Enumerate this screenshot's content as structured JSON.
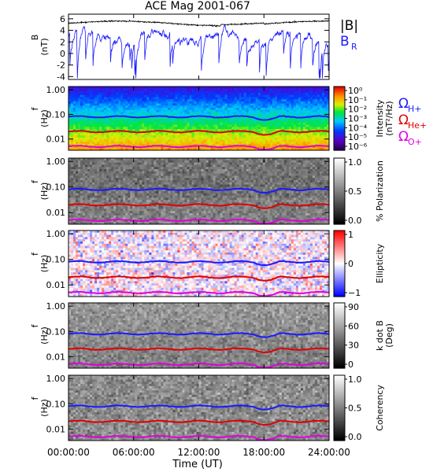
{
  "chart_data": [
    {
      "type": "line",
      "title": "ACE Mag 2001-067",
      "ylabel": "B",
      "yunit": "(nT)",
      "yticks": [
        "6",
        "4",
        "2",
        "0",
        "-2",
        "-4"
      ],
      "ylim": [
        -4.5,
        6.8
      ],
      "legend": [
        {
          "label": "|B|",
          "color": "#000000"
        },
        {
          "label": "B",
          "subscript": "R",
          "color": "#1a1aff"
        }
      ],
      "series": [
        {
          "name": "|B|",
          "color": "#000000",
          "typical": 5.0,
          "range": [
            4.0,
            6.0
          ]
        },
        {
          "name": "B_R",
          "color": "#1a1aff",
          "typical": 3.0,
          "range": [
            -4.4,
            5.5
          ]
        }
      ]
    },
    {
      "type": "heatmap",
      "ylabel": "f",
      "yunit": "(Hz)",
      "yticks": [
        "1.00",
        "0.10",
        "0.01"
      ],
      "colorbar": {
        "title": "Intensity",
        "unit": "(nT²/Hz)",
        "ticks": [
          "10⁰",
          "10⁻¹",
          "10⁻²",
          "10⁻³",
          "10⁻⁴",
          "10⁻⁵",
          "10⁻⁶"
        ],
        "scale": "rainbow"
      },
      "cyclotron_labels": [
        {
          "label": "Ω",
          "subscript": "H+",
          "color": "#1a1aff"
        },
        {
          "label": "Ω",
          "subscript": "He+",
          "color": "#e00000"
        },
        {
          "label": "Ω",
          "subscript": "O+",
          "color": "#e000e0"
        }
      ]
    },
    {
      "type": "heatmap",
      "ylabel": "f",
      "yunit": "(Hz)",
      "yticks": [
        "1.00",
        "0.10",
        "0.01"
      ],
      "colorbar": {
        "title": "% Polarization",
        "ticks": [
          "1.0",
          "0.5",
          "0.0"
        ],
        "scale": "gray"
      }
    },
    {
      "type": "heatmap",
      "ylabel": "f",
      "yunit": "(Hz)",
      "yticks": [
        "1.00",
        "0.10",
        "0.01"
      ],
      "colorbar": {
        "title": "Ellipticity",
        "ticks": [
          "1",
          "0",
          "−1"
        ],
        "scale": "bwr"
      }
    },
    {
      "type": "heatmap",
      "ylabel": "f",
      "yunit": "(Hz)",
      "yticks": [
        "1.00",
        "0.10",
        "0.01"
      ],
      "colorbar": {
        "title": "k dot B",
        "unit": "(Deg)",
        "ticks": [
          "90",
          "60",
          "30",
          "0"
        ],
        "scale": "gray"
      }
    },
    {
      "type": "heatmap",
      "ylabel": "f",
      "yunit": "(Hz)",
      "yticks": [
        "1.00",
        "0.10",
        "0.01"
      ],
      "colorbar": {
        "title": "Coherency",
        "ticks": [
          "1.0",
          "0.5",
          "0.0"
        ],
        "scale": "gray"
      }
    }
  ],
  "overlays": {
    "cyclotron_lines": [
      {
        "name": "Ω_H+",
        "color": "#1a1aff",
        "freq_hz": 0.08
      },
      {
        "name": "Ω_He+",
        "color": "#e00000",
        "freq_hz": 0.02
      },
      {
        "name": "Ω_O+",
        "color": "#e000e0",
        "freq_hz": 0.005
      }
    ]
  },
  "xaxis": {
    "label": "Time (UT)",
    "ticks": [
      "00:00:00",
      "06:00:00",
      "12:00:00",
      "18:00:00",
      "24:00:00"
    ],
    "range_hours": [
      0,
      24
    ]
  }
}
